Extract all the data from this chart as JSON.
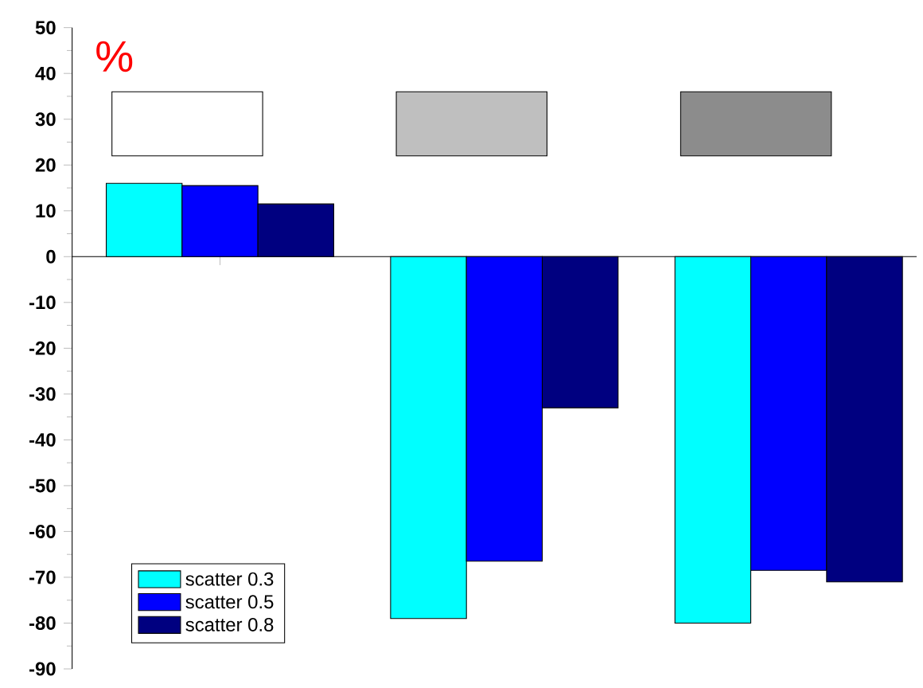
{
  "chart_data": {
    "type": "bar",
    "ylabel": "%",
    "categories": [
      null,
      null,
      null
    ],
    "series": [
      {
        "name": "scatter 0.3",
        "color": "#00ffff",
        "values": [
          16,
          -79,
          -80
        ]
      },
      {
        "name": "scatter 0.5",
        "color": "#0000ff",
        "values": [
          15.5,
          -66.5,
          -68.5
        ]
      },
      {
        "name": "scatter 0.8",
        "color": "#000080",
        "values": [
          11.5,
          -33,
          -71
        ]
      }
    ],
    "ylim": [
      -90,
      50
    ],
    "yticks": [
      -90,
      -80,
      -70,
      -60,
      -50,
      -40,
      -30,
      -20,
      -10,
      0,
      10,
      20,
      30,
      40,
      50
    ],
    "legend": "bottom left"
  }
}
